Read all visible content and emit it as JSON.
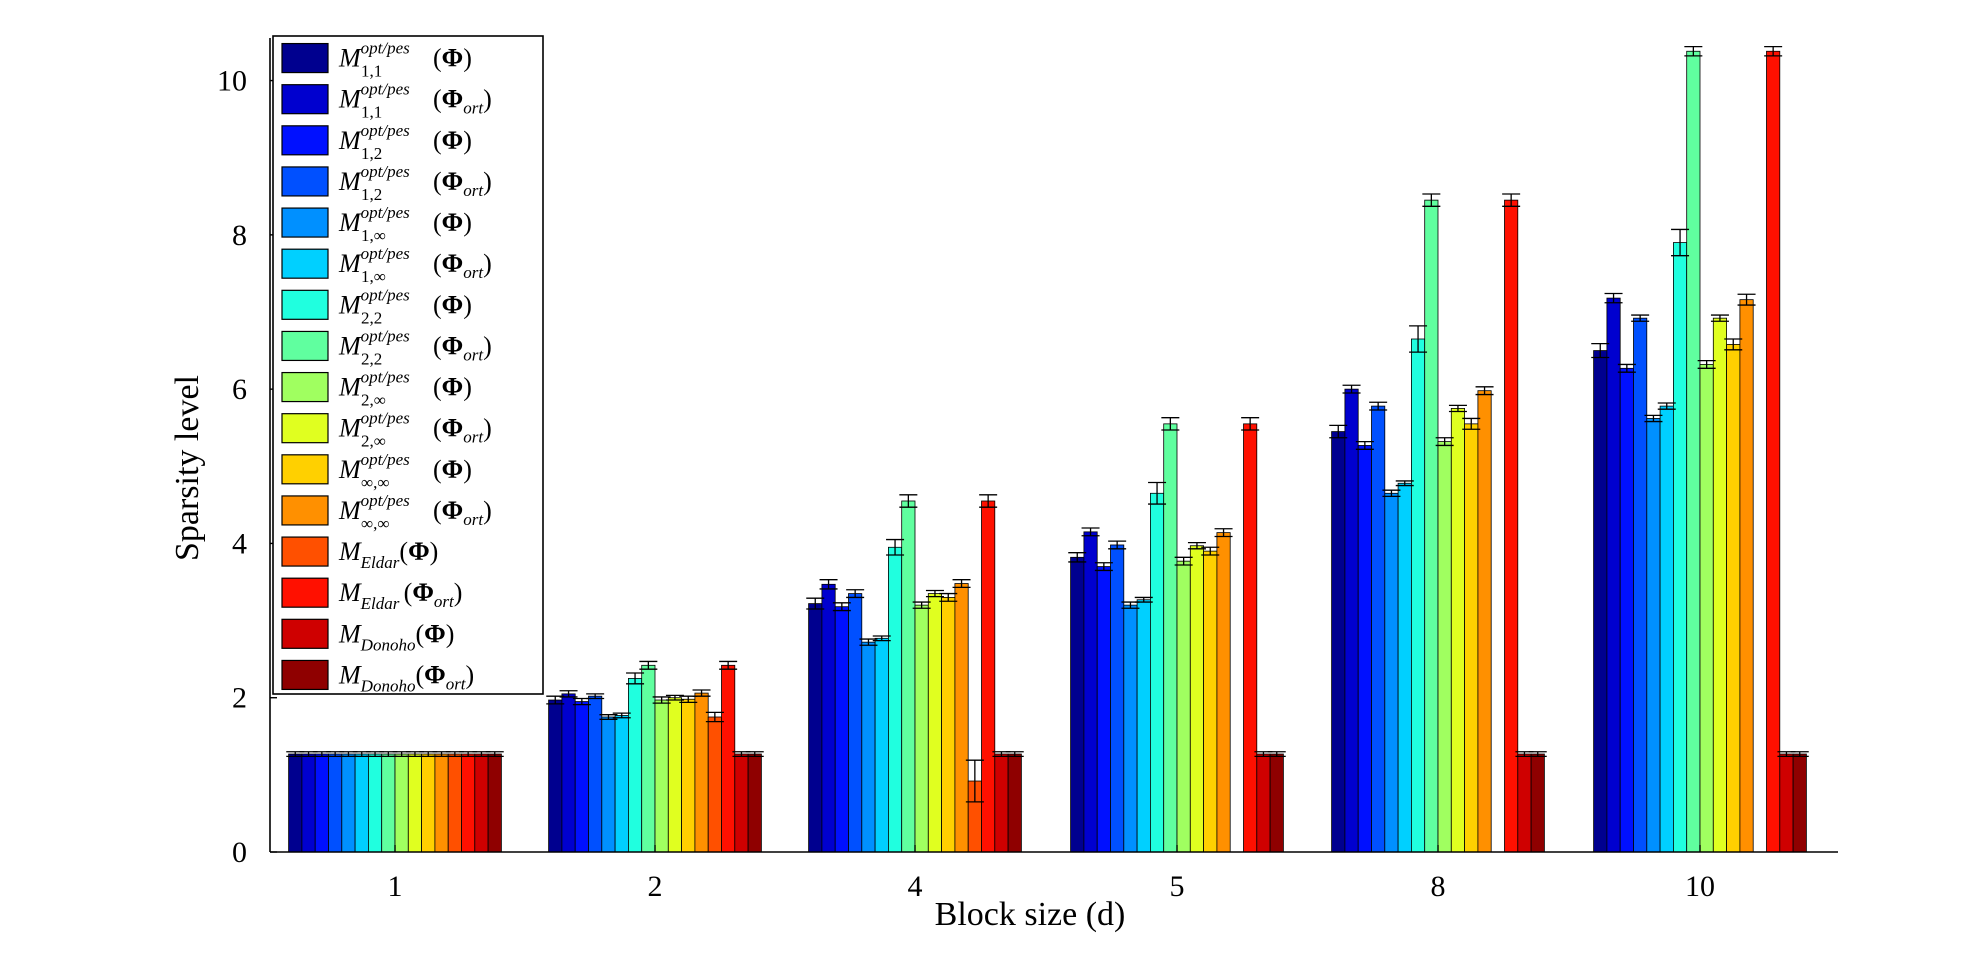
{
  "chart_data": {
    "type": "bar",
    "xlabel": "Block size (d)",
    "ylabel": "Sparsity level",
    "ylim": [
      0,
      10.5
    ],
    "yticks": [
      0,
      2,
      4,
      6,
      8,
      10
    ],
    "categories": [
      "1",
      "2",
      "4",
      "5",
      "8",
      "10"
    ],
    "grid": false,
    "legend_position": "top-left",
    "series": [
      {
        "name": "M^{opt/pes}_{1,1}(Φ)",
        "color": "#00008f",
        "values": [
          1.27,
          1.97,
          3.22,
          3.82,
          5.45,
          6.5
        ],
        "errors": [
          0.03,
          0.05,
          0.07,
          0.06,
          0.08,
          0.09
        ]
      },
      {
        "name": "M^{opt/pes}_{1,1}(Φ_ort)",
        "color": "#0000cf",
        "values": [
          1.27,
          2.05,
          3.47,
          4.15,
          6.0,
          7.18
        ],
        "errors": [
          0.03,
          0.04,
          0.06,
          0.05,
          0.05,
          0.06
        ]
      },
      {
        "name": "M^{opt/pes}_{1,2}(Φ)",
        "color": "#0010ff",
        "values": [
          1.27,
          1.95,
          3.18,
          3.7,
          5.27,
          6.27
        ],
        "errors": [
          0.03,
          0.04,
          0.05,
          0.05,
          0.05,
          0.05
        ]
      },
      {
        "name": "M^{opt/pes}_{1,2}(Φ_ort)",
        "color": "#0050ff",
        "values": [
          1.27,
          2.02,
          3.35,
          3.98,
          5.78,
          6.92
        ],
        "errors": [
          0.03,
          0.03,
          0.05,
          0.05,
          0.05,
          0.04
        ]
      },
      {
        "name": "M^{opt/pes}_{1,∞}(Φ)",
        "color": "#0090ff",
        "values": [
          1.27,
          1.75,
          2.72,
          3.2,
          4.65,
          5.62
        ],
        "errors": [
          0.03,
          0.03,
          0.04,
          0.04,
          0.04,
          0.04
        ]
      },
      {
        "name": "M^{opt/pes}_{1,∞}(Φ_ort)",
        "color": "#00d0ff",
        "values": [
          1.27,
          1.77,
          2.77,
          3.27,
          4.78,
          5.78
        ],
        "errors": [
          0.03,
          0.03,
          0.03,
          0.03,
          0.03,
          0.04
        ]
      },
      {
        "name": "M^{opt/pes}_{2,2}(Φ)",
        "color": "#20ffdf",
        "values": [
          1.27,
          2.25,
          3.95,
          4.65,
          6.65,
          7.9
        ],
        "errors": [
          0.03,
          0.07,
          0.1,
          0.14,
          0.17,
          0.17
        ]
      },
      {
        "name": "M^{opt/pes}_{2,2}(Φ_ort)",
        "color": "#60ff9f",
        "values": [
          1.27,
          2.42,
          4.55,
          5.55,
          8.45,
          10.38
        ],
        "errors": [
          0.03,
          0.05,
          0.08,
          0.08,
          0.08,
          0.06
        ]
      },
      {
        "name": "M^{opt/pes}_{2,∞}(Φ)",
        "color": "#a0ff60",
        "values": [
          1.27,
          1.97,
          3.2,
          3.77,
          5.32,
          6.32
        ],
        "errors": [
          0.03,
          0.04,
          0.04,
          0.05,
          0.05,
          0.05
        ]
      },
      {
        "name": "M^{opt/pes}_{2,∞}(Φ_ort)",
        "color": "#e0ff20",
        "values": [
          1.27,
          2.0,
          3.35,
          3.97,
          5.75,
          6.92
        ],
        "errors": [
          0.03,
          0.03,
          0.04,
          0.04,
          0.04,
          0.04
        ]
      },
      {
        "name": "M^{opt/pes}_{∞,∞}(Φ)",
        "color": "#ffd000",
        "values": [
          1.27,
          1.98,
          3.3,
          3.9,
          5.55,
          6.58
        ],
        "errors": [
          0.03,
          0.04,
          0.05,
          0.05,
          0.07,
          0.07
        ]
      },
      {
        "name": "M^{opt/pes}_{∞,∞}(Φ_ort)",
        "color": "#ff9000",
        "values": [
          1.27,
          2.06,
          3.48,
          4.14,
          5.98,
          7.16
        ],
        "errors": [
          0.03,
          0.04,
          0.05,
          0.05,
          0.05,
          0.07
        ]
      },
      {
        "name": "M_Eldar(Φ)",
        "color": "#ff5000",
        "values": [
          1.27,
          1.75,
          0.92,
          null,
          null,
          null
        ],
        "errors": [
          0.03,
          0.06,
          0.27,
          null,
          null,
          null
        ]
      },
      {
        "name": "M_Eldar (Φ_ort)",
        "color": "#ff1000",
        "values": [
          1.27,
          2.42,
          4.55,
          5.55,
          8.45,
          10.38
        ],
        "errors": [
          0.03,
          0.05,
          0.08,
          0.08,
          0.08,
          0.06
        ]
      },
      {
        "name": "M_Donoho(Φ)",
        "color": "#cf0000",
        "values": [
          1.27,
          1.27,
          1.27,
          1.27,
          1.27,
          1.27
        ],
        "errors": [
          0.03,
          0.03,
          0.03,
          0.03,
          0.03,
          0.03
        ]
      },
      {
        "name": "M_Donoho(Φ_ort)",
        "color": "#8f0000",
        "values": [
          1.27,
          1.27,
          1.27,
          1.27,
          1.27,
          1.27
        ],
        "errors": [
          0.03,
          0.03,
          0.03,
          0.03,
          0.03,
          0.03
        ]
      }
    ],
    "legend_labels": [
      {
        "base": "M",
        "sup": "opt/pes",
        "sub": "1,1",
        "arg": "Φ",
        "argsub": ""
      },
      {
        "base": "M",
        "sup": "opt/pes",
        "sub": "1,1",
        "arg": "Φ",
        "argsub": "ort"
      },
      {
        "base": "M",
        "sup": "opt/pes",
        "sub": "1,2",
        "arg": "Φ",
        "argsub": ""
      },
      {
        "base": "M",
        "sup": "opt/pes",
        "sub": "1,2",
        "arg": "Φ",
        "argsub": "ort"
      },
      {
        "base": "M",
        "sup": "opt/pes",
        "sub": "1,∞",
        "arg": "Φ",
        "argsub": ""
      },
      {
        "base": "M",
        "sup": "opt/pes",
        "sub": "1,∞",
        "arg": "Φ",
        "argsub": "ort"
      },
      {
        "base": "M",
        "sup": "opt/pes",
        "sub": "2,2",
        "arg": "Φ",
        "argsub": ""
      },
      {
        "base": "M",
        "sup": "opt/pes",
        "sub": "2,2",
        "arg": "Φ",
        "argsub": "ort"
      },
      {
        "base": "M",
        "sup": "opt/pes",
        "sub": "2,∞",
        "arg": "Φ",
        "argsub": ""
      },
      {
        "base": "M",
        "sup": "opt/pes",
        "sub": "2,∞",
        "arg": "Φ",
        "argsub": "ort"
      },
      {
        "base": "M",
        "sup": "opt/pes",
        "sub": "∞,∞",
        "arg": "Φ",
        "argsub": ""
      },
      {
        "base": "M",
        "sup": "opt/pes",
        "sub": "∞,∞",
        "arg": "Φ",
        "argsub": "ort"
      },
      {
        "base": "M",
        "sup": "",
        "sub": "Eldar",
        "arg": "Φ",
        "argsub": ""
      },
      {
        "base": "M",
        "sup": "",
        "sub": "Eldar ",
        "arg": "Φ",
        "argsub": "ort"
      },
      {
        "base": "M",
        "sup": "",
        "sub": "Donoho",
        "arg": "Φ",
        "argsub": ""
      },
      {
        "base": "M",
        "sup": "",
        "sub": "Donoho",
        "arg": "Φ",
        "argsub": "ort"
      }
    ]
  }
}
